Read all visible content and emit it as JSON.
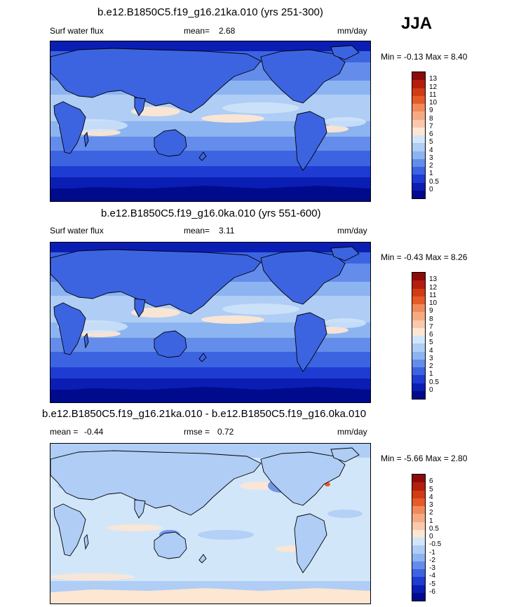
{
  "season": "JJA",
  "panels": [
    {
      "title": "b.e12.B1850C5.f19_g16.21ka.010 (yrs 251-300)",
      "variable": "Surf water flux",
      "stat1_label": "mean=",
      "stat1_value": "2.68",
      "stat2_label": "",
      "stat2_value": "",
      "units": "mm/day",
      "minmax": "Min =  -0.13 Max =   8.40",
      "colorbar": {
        "ticks": [
          "13",
          "12",
          "11",
          "10",
          "9",
          "8",
          "7",
          "6",
          "5",
          "4",
          "3",
          "2",
          "1",
          "0.5",
          "0"
        ],
        "colors": [
          "#8c0a0a",
          "#b41e0e",
          "#d23c14",
          "#e65a28",
          "#f08a5a",
          "#f5aa82",
          "#fac8aa",
          "#fde6d2",
          "#d2e6fa",
          "#afcdf5",
          "#8cb4f0",
          "#648cea",
          "#3c64e1",
          "#1e3cd2",
          "#0a1eb4",
          "#000a8c"
        ]
      },
      "chart_data": {
        "type": "heatmap",
        "title": "b.e12.B1850C5.f19_g16.21ka.010 (yrs 251-300)",
        "field": "Surf water flux",
        "units": "mm/day",
        "season": "JJA",
        "mean": 2.68,
        "min": -0.13,
        "max": 8.4,
        "levels": [
          0,
          0.5,
          1,
          2,
          3,
          4,
          5,
          6,
          7,
          8,
          9,
          10,
          11,
          12,
          13
        ]
      }
    },
    {
      "title": "b.e12.B1850C5.f19_g16.0ka.010 (yrs 551-600)",
      "variable": "Surf water flux",
      "stat1_label": "mean=",
      "stat1_value": "3.11",
      "stat2_label": "",
      "stat2_value": "",
      "units": "mm/day",
      "minmax": "Min =  -0.43 Max =   8.26",
      "colorbar": {
        "ticks": [
          "13",
          "12",
          "11",
          "10",
          "9",
          "8",
          "7",
          "6",
          "5",
          "4",
          "3",
          "2",
          "1",
          "0.5",
          "0"
        ],
        "colors": [
          "#8c0a0a",
          "#b41e0e",
          "#d23c14",
          "#e65a28",
          "#f08a5a",
          "#f5aa82",
          "#fac8aa",
          "#fde6d2",
          "#d2e6fa",
          "#afcdf5",
          "#8cb4f0",
          "#648cea",
          "#3c64e1",
          "#1e3cd2",
          "#0a1eb4",
          "#000a8c"
        ]
      },
      "chart_data": {
        "type": "heatmap",
        "title": "b.e12.B1850C5.f19_g16.0ka.010 (yrs 551-600)",
        "field": "Surf water flux",
        "units": "mm/day",
        "season": "JJA",
        "mean": 3.11,
        "min": -0.43,
        "max": 8.26,
        "levels": [
          0,
          0.5,
          1,
          2,
          3,
          4,
          5,
          6,
          7,
          8,
          9,
          10,
          11,
          12,
          13
        ]
      }
    },
    {
      "title": "b.e12.B1850C5.f19_g16.21ka.010 - b.e12.B1850C5.f19_g16.0ka.010",
      "variable": "",
      "stat1_label": "mean =",
      "stat1_value": "-0.44",
      "stat2_label": "rmse =",
      "stat2_value": "0.72",
      "units": "mm/day",
      "minmax": "Min =  -5.66 Max =   2.80",
      "colorbar": {
        "ticks": [
          "6",
          "5",
          "4",
          "3",
          "2",
          "1",
          "0.5",
          "0",
          "-0.5",
          "-1",
          "-2",
          "-3",
          "-4",
          "-5",
          "-6"
        ],
        "colors": [
          "#8c0a0a",
          "#b41e0e",
          "#d23c14",
          "#e65a28",
          "#f08a5a",
          "#f5aa82",
          "#fac8aa",
          "#fde6d2",
          "#d2e6fa",
          "#afcdf5",
          "#8cb4f0",
          "#648cea",
          "#3c64e1",
          "#1e3cd2",
          "#0a1eb4",
          "#000a8c"
        ]
      },
      "chart_data": {
        "type": "heatmap",
        "title": "b.e12.B1850C5.f19_g16.21ka.010 - b.e12.B1850C5.f19_g16.0ka.010",
        "units": "mm/day",
        "season": "JJA",
        "mean": -0.44,
        "rmse": 0.72,
        "min": -5.66,
        "max": 2.8,
        "levels": [
          -6,
          -5,
          -4,
          -3,
          -2,
          -1,
          -0.5,
          0,
          0.5,
          1,
          2,
          3,
          4,
          5,
          6
        ]
      }
    }
  ]
}
